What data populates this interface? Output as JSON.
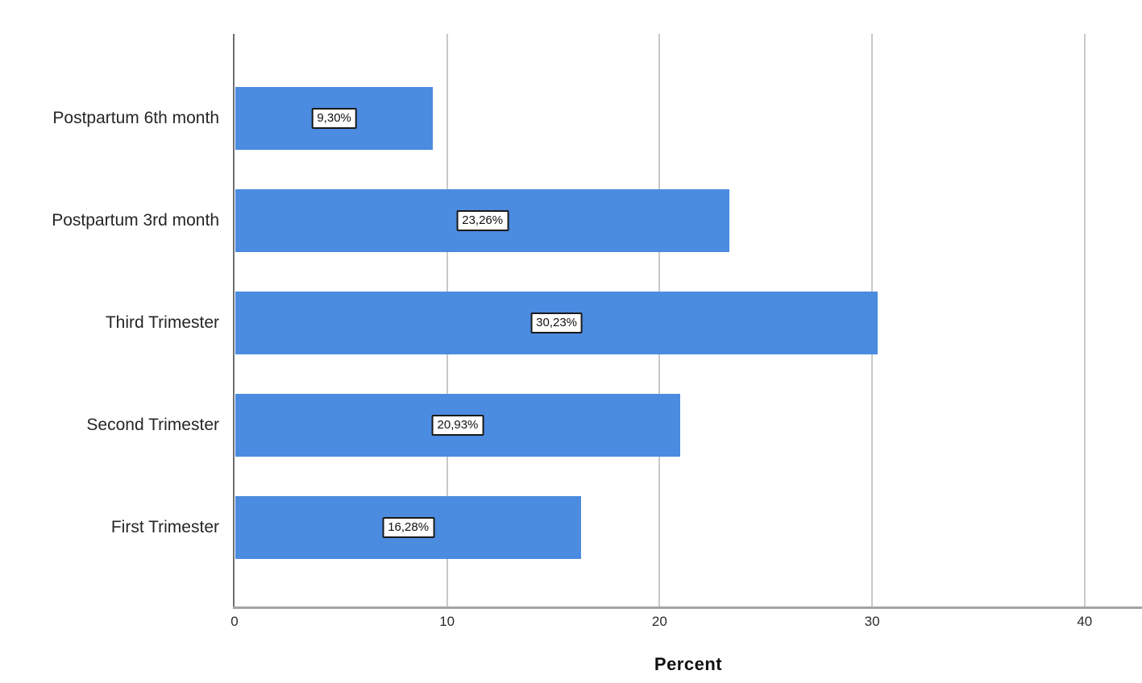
{
  "chart_data": {
    "type": "bar",
    "orientation": "horizontal",
    "title": "",
    "xlabel": "Percent",
    "ylabel": "",
    "categories": [
      "Postpartum 6th month",
      "Postpartum 3rd month",
      "Third Trimester",
      "Second Trimester",
      "First Trimester"
    ],
    "values": [
      9.3,
      23.26,
      30.23,
      20.93,
      16.28
    ],
    "value_labels": [
      "9,30%",
      "23,26%",
      "30,23%",
      "20,93%",
      "16,28%"
    ],
    "x_ticks": [
      0,
      10,
      20,
      30,
      40
    ],
    "xlim": [
      0,
      42.7
    ],
    "grid": "vertical",
    "legend": "none",
    "colors": {
      "bar": "#4B8BE0",
      "gridline": "#c9c9c9",
      "y_axis_line": "#6e6e6e",
      "x_axis_line": "#a3a3a3",
      "label_box_border": "#1a1a1a",
      "label_box_background": "#ffffff",
      "text": "#262626"
    }
  }
}
